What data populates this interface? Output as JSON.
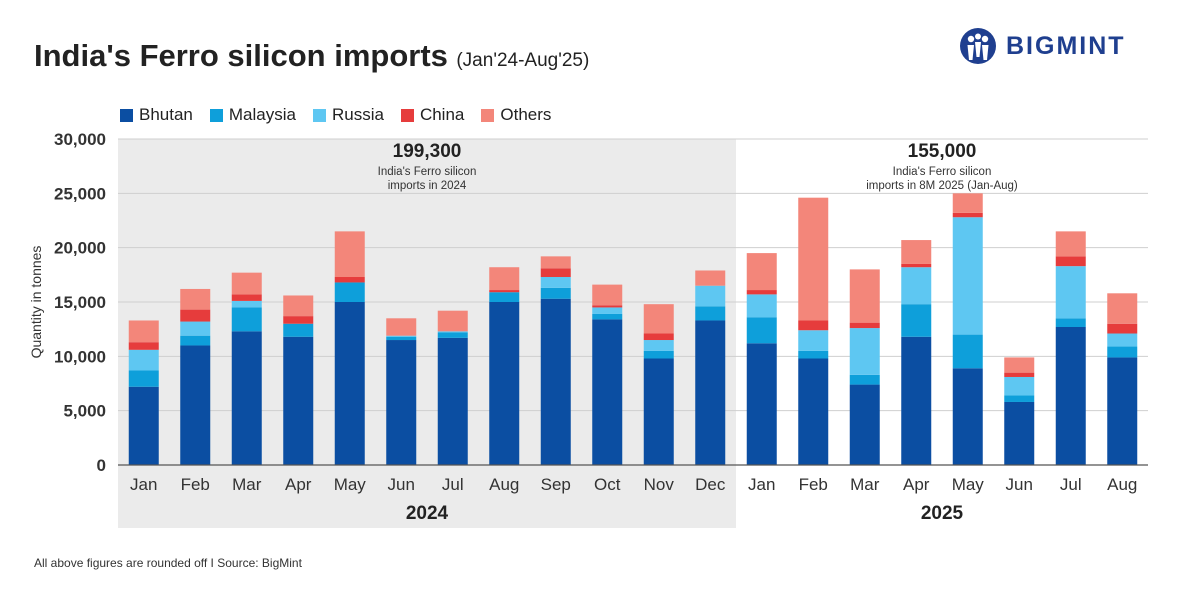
{
  "title": "India's Ferro silicon imports",
  "subtitle": "(Jan'24-Aug'25)",
  "brand": {
    "name": "BIGMINT",
    "color": "#1f3f8f"
  },
  "footnote": "All above figures are rounded off  I  Source: BigMint",
  "chart_data": {
    "type": "bar",
    "stacked": true,
    "ylabel": "Quantity in  tonnes",
    "ylim": [
      0,
      30000
    ],
    "yticks": [
      "0",
      "5,000",
      "10,000",
      "15,000",
      "20,000",
      "25,000",
      "30,000"
    ],
    "grid": true,
    "legend_position": "top-left",
    "categories": [
      "Jan",
      "Feb",
      "Mar",
      "Apr",
      "May",
      "Jun",
      "Jul",
      "Aug",
      "Sep",
      "Oct",
      "Nov",
      "Dec",
      "Jan",
      "Feb",
      "Mar",
      "Apr",
      "May",
      "Jun",
      "Jul",
      "Aug"
    ],
    "groups": [
      {
        "label": "2024",
        "count": 12,
        "total": "199,300",
        "note_lines": [
          "India's Ferro silicon",
          "imports in 2024"
        ]
      },
      {
        "label": "2025",
        "count": 8,
        "total": "155,000",
        "note_lines": [
          "India's Ferro silicon",
          "imports in 8M 2025 (Jan-Aug)"
        ]
      }
    ],
    "series": [
      {
        "name": "Bhutan",
        "color": "#0b4ea2",
        "values": [
          7200,
          11000,
          12300,
          11800,
          15000,
          11500,
          11700,
          15000,
          15300,
          13400,
          9800,
          13300,
          11200,
          9800,
          7400,
          11800,
          8900,
          5800,
          12700,
          9900
        ]
      },
      {
        "name": "Malaysia",
        "color": "#0e9fda",
        "values": [
          1500,
          900,
          2200,
          1200,
          1800,
          300,
          500,
          900,
          1000,
          500,
          700,
          1300,
          2400,
          700,
          900,
          3000,
          3100,
          600,
          800,
          1000
        ]
      },
      {
        "name": "Russia",
        "color": "#5ec7f2",
        "values": [
          1900,
          1300,
          600,
          0,
          0,
          100,
          100,
          0,
          1000,
          600,
          1000,
          1900,
          2100,
          1900,
          4300,
          3400,
          10800,
          1700,
          4800,
          1200
        ]
      },
      {
        "name": "China",
        "color": "#e63c3c",
        "values": [
          700,
          1100,
          600,
          700,
          500,
          0,
          0,
          200,
          800,
          200,
          600,
          0,
          400,
          900,
          500,
          300,
          400,
          400,
          900,
          900
        ]
      },
      {
        "name": "Others",
        "color": "#f3867a",
        "values": [
          2000,
          1900,
          2000,
          1900,
          4200,
          1600,
          1900,
          2100,
          1100,
          1900,
          2700,
          1400,
          3400,
          11300,
          4900,
          2200,
          1800,
          1400,
          2300,
          2800
        ]
      }
    ]
  }
}
